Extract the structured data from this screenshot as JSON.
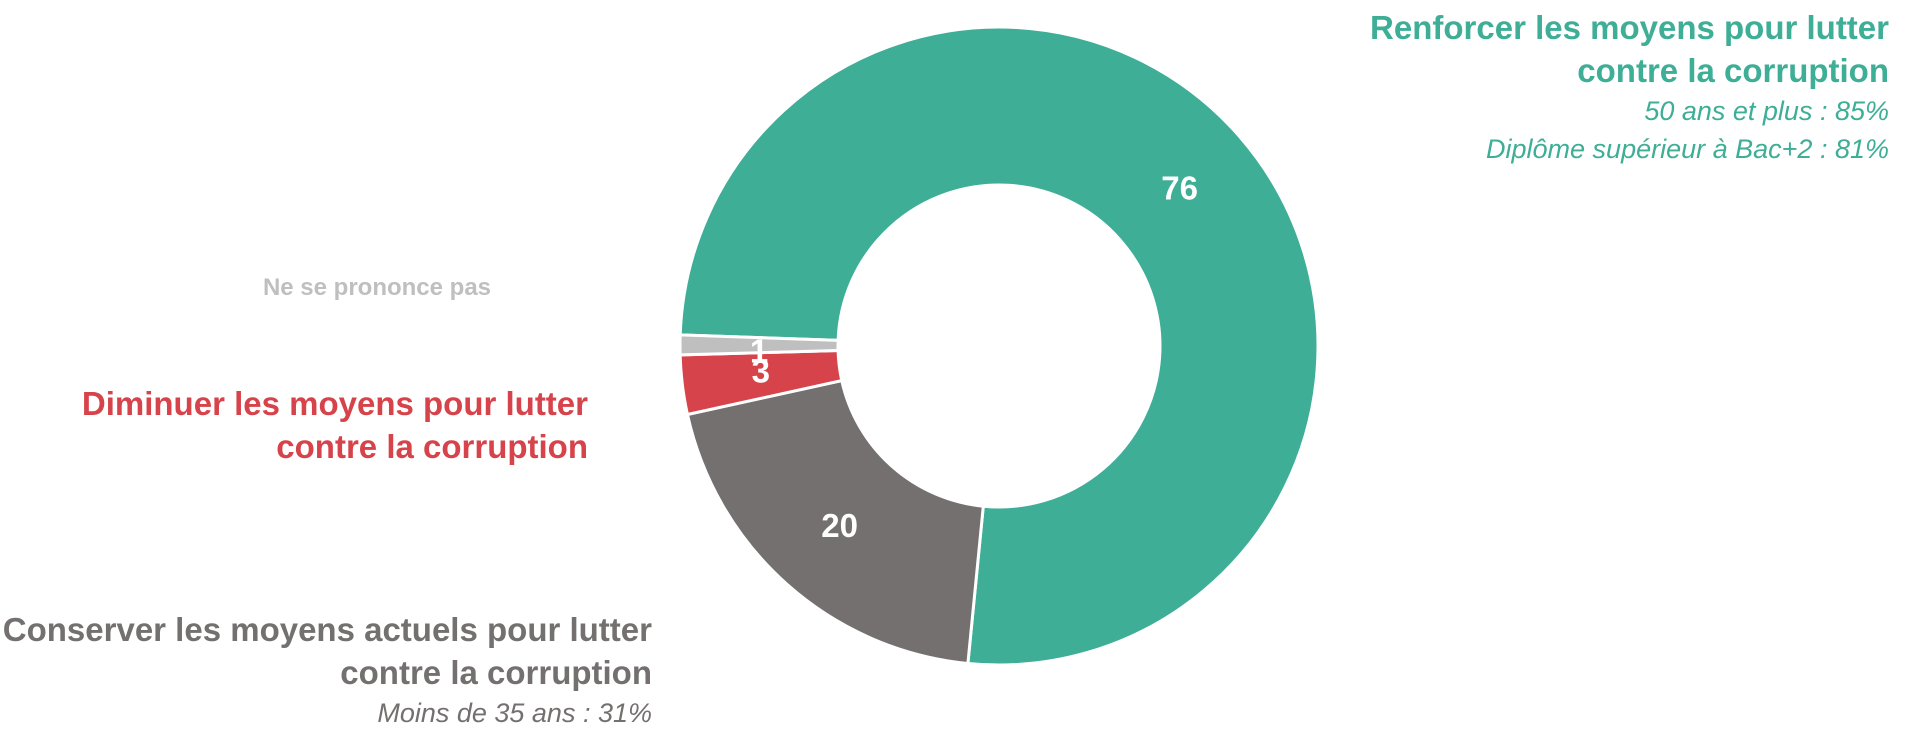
{
  "chart_data": {
    "type": "donut",
    "categories": [
      "Renforcer les moyens pour lutter contre la corruption",
      "Conserver les moyens actuels pour lutter contre la corruption",
      "Diminuer les moyens pour lutter contre la corruption",
      "Ne se prononce pas"
    ],
    "values": [
      76,
      20,
      3,
      1
    ],
    "colors": [
      "#3eae96",
      "#747070",
      "#d7434a",
      "#bfbfbf"
    ],
    "details": [
      [
        "50 ans et plus : 85%",
        "Diplôme supérieur à Bac+2 : 81%"
      ],
      [
        "Moins de 35 ans : 31%"
      ],
      [],
      []
    ]
  }
}
